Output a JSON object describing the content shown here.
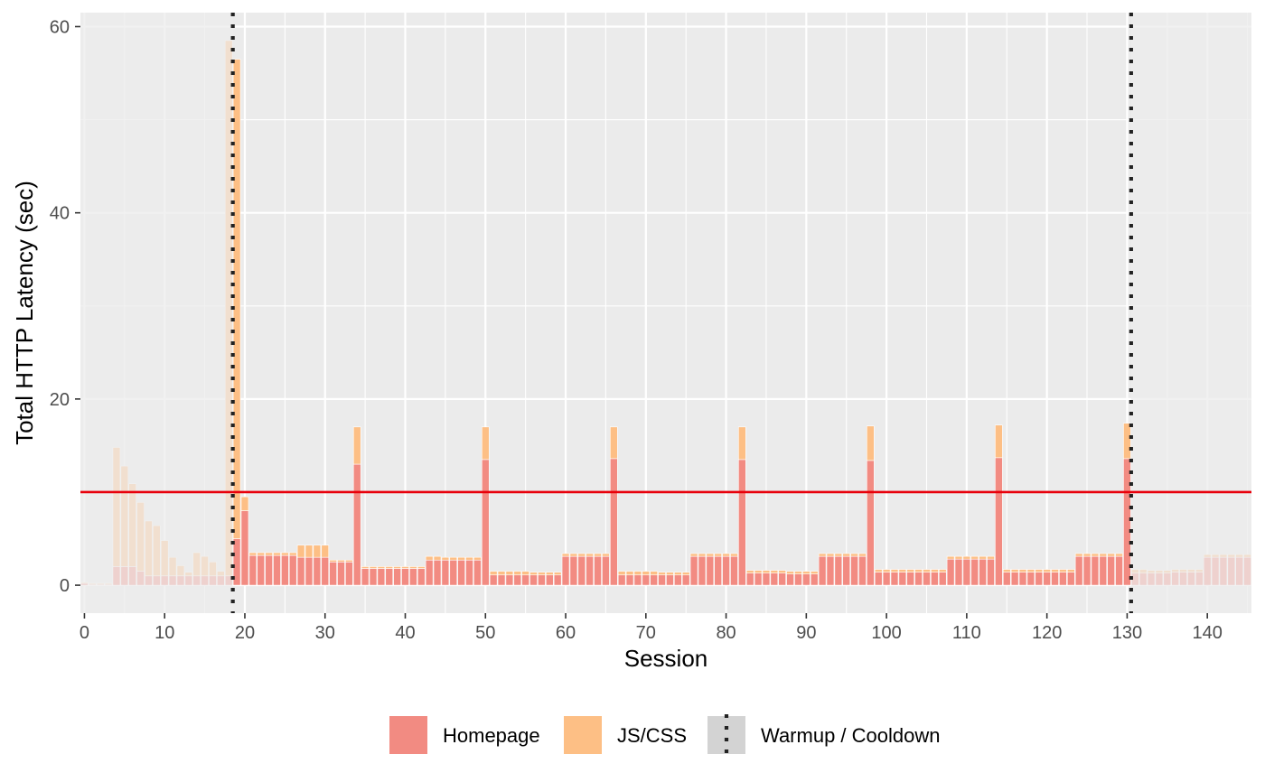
{
  "chart_data": {
    "type": "bar",
    "stacked": true,
    "xlabel": "Session",
    "ylabel": "Total HTTP Latency (sec)",
    "xlim": [
      -0.5,
      145.5
    ],
    "ylim": [
      -3,
      61.5
    ],
    "xticks": [
      0,
      10,
      20,
      30,
      40,
      50,
      60,
      70,
      80,
      90,
      100,
      110,
      120,
      130,
      140
    ],
    "yticks": [
      0,
      20,
      40,
      60
    ],
    "grid": true,
    "legend_position": "bottom",
    "reference_line": {
      "y": 10,
      "color": "#e8000b"
    },
    "warmup_cooldown_lines": [
      18.5,
      130.5
    ],
    "warmup_end": 18.5,
    "cooldown_start": 130.5,
    "series": [
      {
        "name": "Homepage",
        "color": "#f28b82"
      },
      {
        "name": "JS/CSS",
        "color": "#fdbf85"
      },
      {
        "name": "Warmup / Cooldown",
        "color": "#d3d3d3"
      }
    ],
    "homepage": [
      0.2,
      0.1,
      0.1,
      0.1,
      2.0,
      2.0,
      2.0,
      1.5,
      1.0,
      1.0,
      1.0,
      1.0,
      1.0,
      1.0,
      1.0,
      1.0,
      1.0,
      1.0,
      1.0,
      5.0,
      8.0,
      3.2,
      3.2,
      3.2,
      3.2,
      3.2,
      3.2,
      3.0,
      3.0,
      3.0,
      3.0,
      2.5,
      2.5,
      2.5,
      13.0,
      1.8,
      1.8,
      1.8,
      1.8,
      1.8,
      1.8,
      1.8,
      1.8,
      2.7,
      2.7,
      2.7,
      2.7,
      2.7,
      2.7,
      2.7,
      13.5,
      1.1,
      1.1,
      1.1,
      1.1,
      1.1,
      1.1,
      1.1,
      1.1,
      1.1,
      3.1,
      3.1,
      3.1,
      3.1,
      3.1,
      3.1,
      13.6,
      1.1,
      1.1,
      1.1,
      1.1,
      1.1,
      1.1,
      1.1,
      1.1,
      1.1,
      3.1,
      3.1,
      3.1,
      3.1,
      3.1,
      3.1,
      13.5,
      1.3,
      1.3,
      1.3,
      1.3,
      1.3,
      1.2,
      1.2,
      1.2,
      1.2,
      3.1,
      3.1,
      3.1,
      3.1,
      3.1,
      3.1,
      13.4,
      1.4,
      1.4,
      1.4,
      1.4,
      1.4,
      1.4,
      1.4,
      1.4,
      1.4,
      2.8,
      2.8,
      2.8,
      2.8,
      2.8,
      2.8,
      13.7,
      1.4,
      1.4,
      1.4,
      1.4,
      1.4,
      1.4,
      1.4,
      1.4,
      1.4,
      3.1,
      3.1,
      3.1,
      3.1,
      3.1,
      3.1,
      13.6,
      1.3,
      1.3,
      1.3,
      1.3,
      1.3,
      1.4,
      1.4,
      1.4,
      1.4,
      3.0,
      3.0,
      3.0,
      3.0,
      3.0,
      3.0
    ],
    "jscss": [
      0.1,
      0.1,
      0.1,
      0.1,
      12.8,
      10.8,
      8.9,
      7.4,
      5.9,
      5.4,
      3.8,
      2.0,
      1.1,
      0.4,
      2.5,
      2.1,
      1.5,
      0.5,
      57.5,
      51.5,
      1.5,
      0.3,
      0.3,
      0.3,
      0.3,
      0.3,
      0.3,
      1.3,
      1.3,
      1.3,
      1.3,
      0.2,
      0.2,
      0.2,
      4.0,
      0.2,
      0.2,
      0.2,
      0.2,
      0.2,
      0.2,
      0.2,
      0.2,
      0.4,
      0.4,
      0.3,
      0.3,
      0.3,
      0.3,
      0.3,
      3.5,
      0.4,
      0.4,
      0.4,
      0.4,
      0.4,
      0.3,
      0.3,
      0.3,
      0.3,
      0.3,
      0.3,
      0.3,
      0.3,
      0.3,
      0.3,
      3.4,
      0.4,
      0.4,
      0.4,
      0.4,
      0.4,
      0.3,
      0.3,
      0.3,
      0.3,
      0.3,
      0.3,
      0.3,
      0.3,
      0.3,
      0.3,
      3.5,
      0.3,
      0.3,
      0.3,
      0.3,
      0.3,
      0.3,
      0.3,
      0.3,
      0.3,
      0.3,
      0.3,
      0.3,
      0.3,
      0.3,
      0.3,
      3.7,
      0.3,
      0.3,
      0.3,
      0.3,
      0.3,
      0.3,
      0.3,
      0.3,
      0.3,
      0.3,
      0.3,
      0.3,
      0.3,
      0.3,
      0.3,
      3.5,
      0.3,
      0.3,
      0.3,
      0.3,
      0.3,
      0.3,
      0.3,
      0.3,
      0.3,
      0.3,
      0.3,
      0.3,
      0.3,
      0.3,
      0.3,
      3.8,
      0.4,
      0.4,
      0.3,
      0.3,
      0.3,
      0.3,
      0.3,
      0.3,
      0.3,
      0.3,
      0.3,
      0.3,
      0.3,
      0.3,
      0.3
    ]
  }
}
